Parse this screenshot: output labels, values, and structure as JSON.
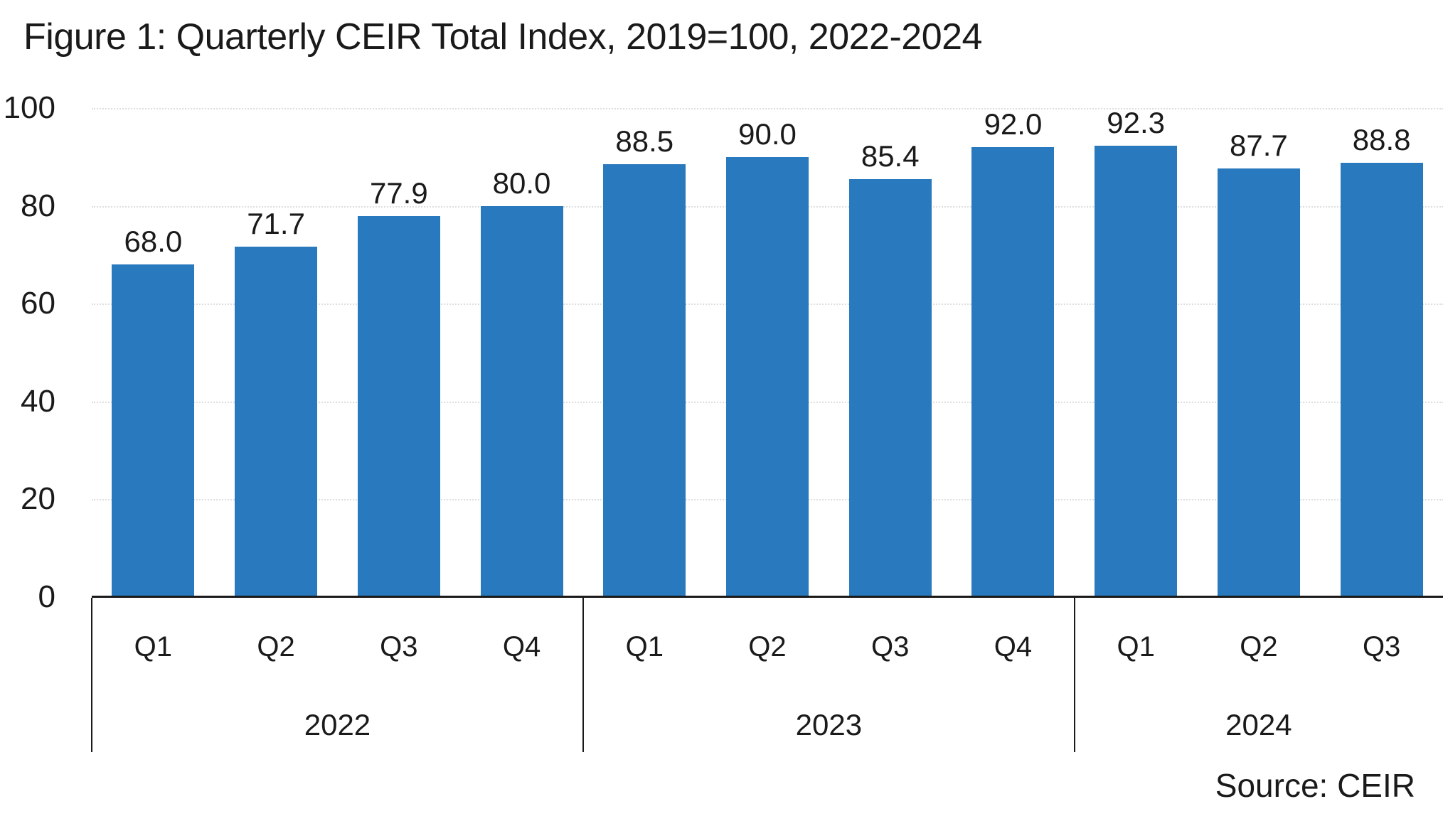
{
  "title": "Figure 1: Quarterly CEIR Total Index, 2019=100, 2022-2024",
  "source_note": "Source: CEIR",
  "colors": {
    "bar": "#2879BD",
    "text": "#1a1a1a",
    "gridline": "#dedede",
    "axis": "#1a1a1a"
  },
  "chart_data": {
    "type": "bar",
    "title": "Figure 1: Quarterly CEIR Total Index, 2019=100, 2022-2024",
    "source_note": "Source: CEIR",
    "ylim": [
      0,
      100
    ],
    "yticks": [
      0,
      20,
      40,
      60,
      80,
      100
    ],
    "grid": "horizontal-dotted",
    "legend": "none",
    "bar_color": "#2879BD",
    "categories": [
      "Q1",
      "Q2",
      "Q3",
      "Q4",
      "Q1",
      "Q2",
      "Q3",
      "Q4",
      "Q1",
      "Q2",
      "Q3"
    ],
    "values": [
      68.0,
      71.7,
      77.9,
      80.0,
      88.5,
      90.0,
      85.4,
      92.0,
      92.3,
      87.7,
      88.8
    ],
    "value_labels": [
      "68.0",
      "71.7",
      "77.9",
      "80.0",
      "88.5",
      "90.0",
      "85.4",
      "92.0",
      "92.3",
      "87.7",
      "88.8"
    ],
    "groups": [
      {
        "label": "2022",
        "quarters": [
          "Q1",
          "Q2",
          "Q3",
          "Q4"
        ],
        "values": [
          68.0,
          71.7,
          77.9,
          80.0
        ],
        "value_labels": [
          "68.0",
          "71.7",
          "77.9",
          "80.0"
        ]
      },
      {
        "label": "2023",
        "quarters": [
          "Q1",
          "Q2",
          "Q3",
          "Q4"
        ],
        "values": [
          88.5,
          90.0,
          85.4,
          92.0
        ],
        "value_labels": [
          "88.5",
          "90.0",
          "85.4",
          "92.0"
        ]
      },
      {
        "label": "2024",
        "quarters": [
          "Q1",
          "Q2",
          "Q3"
        ],
        "values": [
          92.3,
          87.7,
          88.8
        ],
        "value_labels": [
          "92.3",
          "87.7",
          "88.8"
        ]
      }
    ]
  }
}
